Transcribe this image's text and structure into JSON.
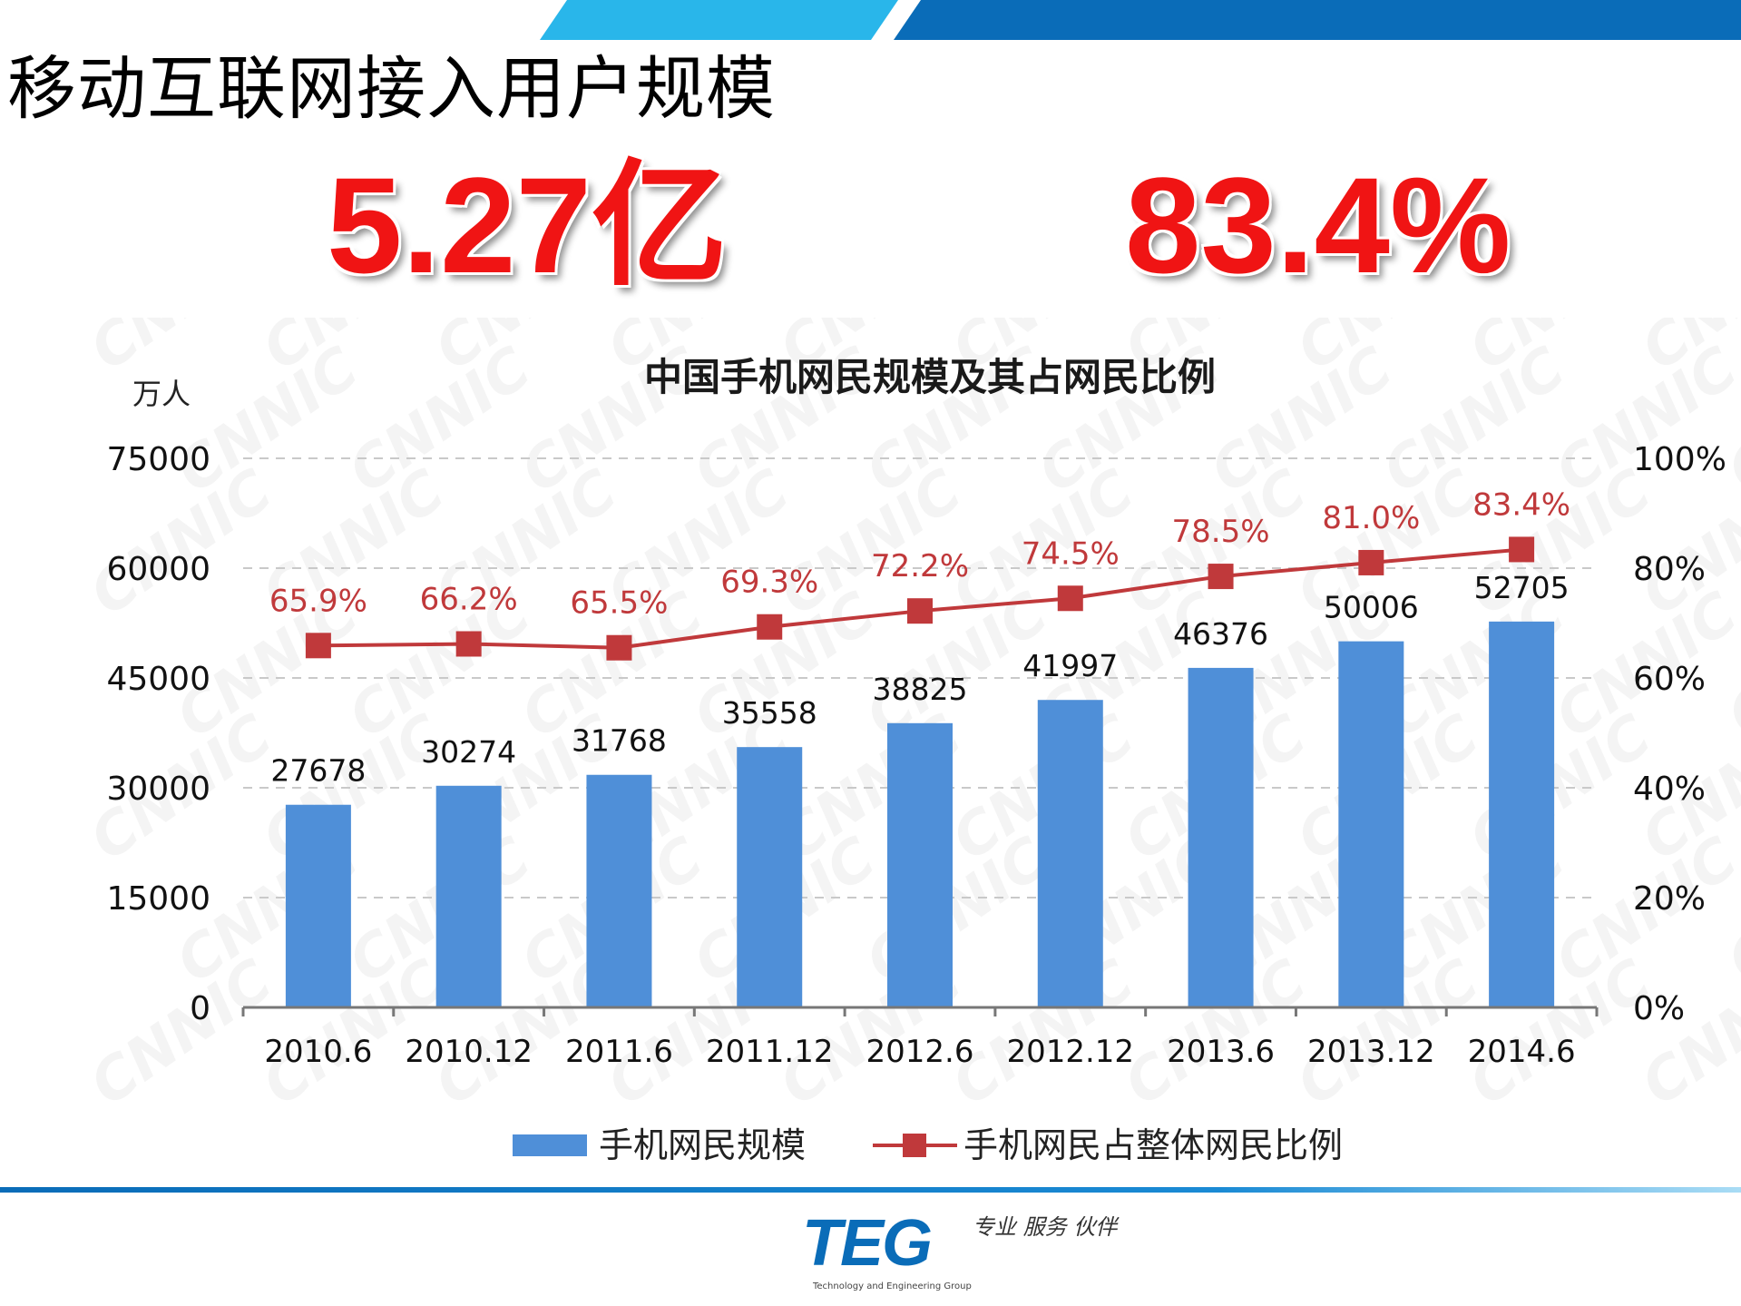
{
  "slide": {
    "title": "移动互联网接入用户规模",
    "stat_users": "5.27亿",
    "stat_percent": "83.4%"
  },
  "colors": {
    "accent_light": "#29b6ea",
    "accent_dark": "#0a6cb8",
    "stat_red": "#f01414",
    "bar_blue": "#4f8fd8",
    "line_red": "#c0393b",
    "label_red": "#c0393b",
    "grid": "#c9c9c9"
  },
  "chart_data": {
    "type": "bar+line",
    "title": "中国手机网民规模及其占网民比例",
    "ylabel": "万人",
    "categories": [
      "2010.6",
      "2010.12",
      "2011.6",
      "2011.12",
      "2012.6",
      "2012.12",
      "2013.6",
      "2013.12",
      "2014.6"
    ],
    "series": [
      {
        "name": "手机网民规模",
        "type": "bar",
        "axis": "left",
        "values": [
          27678,
          30274,
          31768,
          35558,
          38825,
          41997,
          46376,
          50006,
          52705
        ],
        "labels": [
          "27678",
          "30274",
          "31768",
          "35558",
          "38825",
          "41997",
          "46376",
          "50006",
          "52705"
        ]
      },
      {
        "name": "手机网民占整体网民比例",
        "type": "line",
        "axis": "right",
        "values": [
          65.9,
          66.2,
          65.5,
          69.3,
          72.2,
          74.5,
          78.5,
          81.0,
          83.4
        ],
        "labels": [
          "65.9%",
          "66.2%",
          "65.5%",
          "69.3%",
          "72.2%",
          "74.5%",
          "78.5%",
          "81.0%",
          "83.4%"
        ]
      }
    ],
    "y_left": {
      "min": 0,
      "max": 75000,
      "ticks": [
        0,
        15000,
        30000,
        45000,
        60000,
        75000
      ],
      "tick_labels": [
        "0",
        "15000",
        "30000",
        "45000",
        "60000",
        "75000"
      ]
    },
    "y_right": {
      "min": 0,
      "max": 100,
      "ticks": [
        0,
        20,
        40,
        60,
        80,
        100
      ],
      "tick_labels": [
        "0%",
        "20%",
        "40%",
        "60%",
        "80%",
        "100%"
      ]
    },
    "grid": true,
    "legend_position": "bottom",
    "watermark": "CNNIC"
  },
  "footer": {
    "logo": "TEG",
    "slogan": "专业 服务 伙伴",
    "org": "Technology and Engineering Group"
  }
}
